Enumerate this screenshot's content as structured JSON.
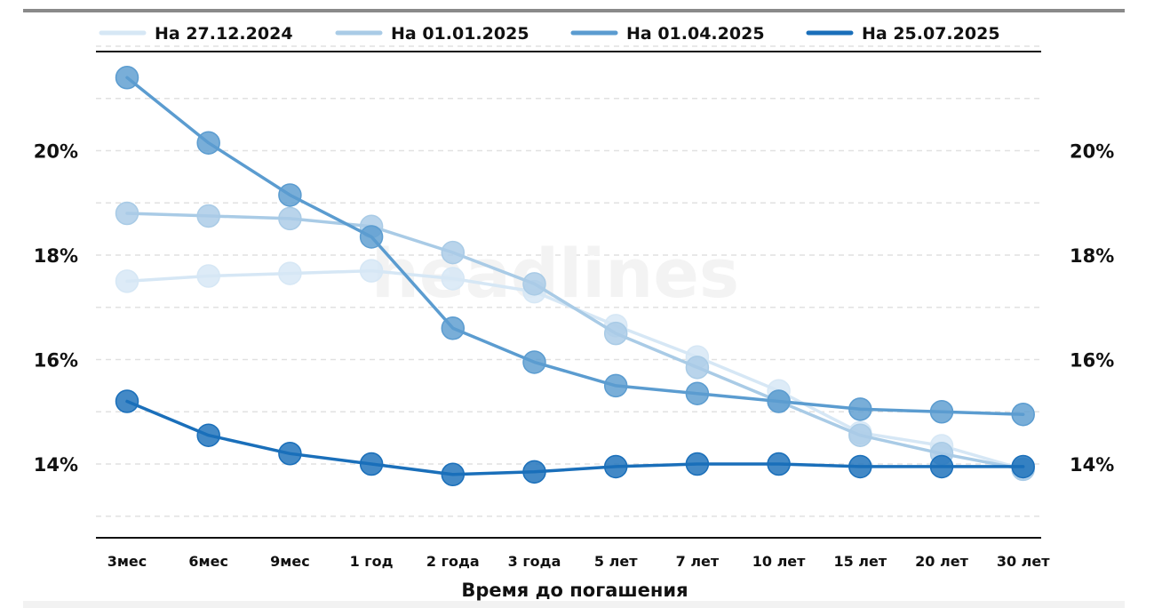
{
  "chart_data": {
    "type": "line",
    "title": "",
    "xlabel": "Время до погашения",
    "ylabel": "",
    "categories": [
      "3мес",
      "6мес",
      "9мес",
      "1 год",
      "2 года",
      "3 года",
      "5 лет",
      "7 лет",
      "10 лет",
      "15 лет",
      "20 лет",
      "30 лет"
    ],
    "ylim": [
      12.7,
      22.4
    ],
    "yticks": [
      14,
      16,
      18,
      20
    ],
    "ytick_labels": [
      "14%",
      "16%",
      "18%",
      "20%"
    ],
    "grid": true,
    "legend": "top",
    "watermark": "headlines",
    "series": [
      {
        "name": "На 27.12.2024",
        "color": "#d6e7f5",
        "values": [
          17.5,
          17.6,
          17.65,
          17.7,
          17.55,
          17.3,
          16.65,
          16.05,
          15.4,
          14.6,
          14.35,
          13.9
        ]
      },
      {
        "name": "На 01.01.2025",
        "color": "#a9cbe6",
        "values": [
          18.8,
          18.75,
          18.7,
          18.55,
          18.05,
          17.45,
          16.5,
          15.85,
          15.2,
          14.55,
          14.2,
          13.9
        ]
      },
      {
        "name": "На 01.04.2025",
        "color": "#5b9cd0",
        "values": [
          21.4,
          20.15,
          19.15,
          18.35,
          16.6,
          15.95,
          15.5,
          15.35,
          15.2,
          15.05,
          15.0,
          14.95
        ]
      },
      {
        "name": "На 25.07.2025",
        "color": "#1a6fba",
        "values": [
          15.2,
          14.55,
          14.2,
          14.0,
          13.8,
          13.85,
          13.95,
          14.0,
          14.0,
          13.95,
          13.95,
          13.95
        ]
      }
    ]
  }
}
